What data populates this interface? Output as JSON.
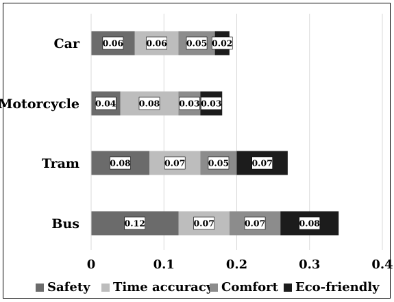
{
  "chart_data": {
    "type": "bar",
    "orientation": "horizontal",
    "stacked": true,
    "categories": [
      "Car",
      "Motorcycle",
      "Tram",
      "Bus"
    ],
    "series": [
      {
        "name": "Safety",
        "color": "#6b6b6b",
        "values": [
          0.06,
          0.04,
          0.08,
          0.12
        ],
        "labels": [
          "0.06",
          "0.04",
          "0.08",
          "0.12"
        ]
      },
      {
        "name": "Time accuracy",
        "color": "#bdbdbd",
        "values": [
          0.06,
          0.08,
          0.07,
          0.07
        ],
        "labels": [
          "0.06",
          "0.08",
          "0.07",
          "0.07"
        ]
      },
      {
        "name": "Comfort",
        "color": "#8c8c8c",
        "values": [
          0.05,
          0.03,
          0.05,
          0.07
        ],
        "labels": [
          "0.05",
          "0.03",
          "0.05",
          "0.07"
        ]
      },
      {
        "name": "Eco-friendly",
        "color": "#1c1c1c",
        "values": [
          0.02,
          0.03,
          0.07,
          0.08
        ],
        "labels": [
          "0.02",
          "0.03",
          "0.07",
          "0.08"
        ]
      }
    ],
    "xlim": [
      0,
      0.4
    ],
    "xticks": [
      "0",
      "0.1",
      "0.2",
      "0.3",
      "0.4"
    ],
    "grid": true,
    "legend_position": "bottom",
    "title": "",
    "xlabel": "",
    "ylabel": ""
  }
}
